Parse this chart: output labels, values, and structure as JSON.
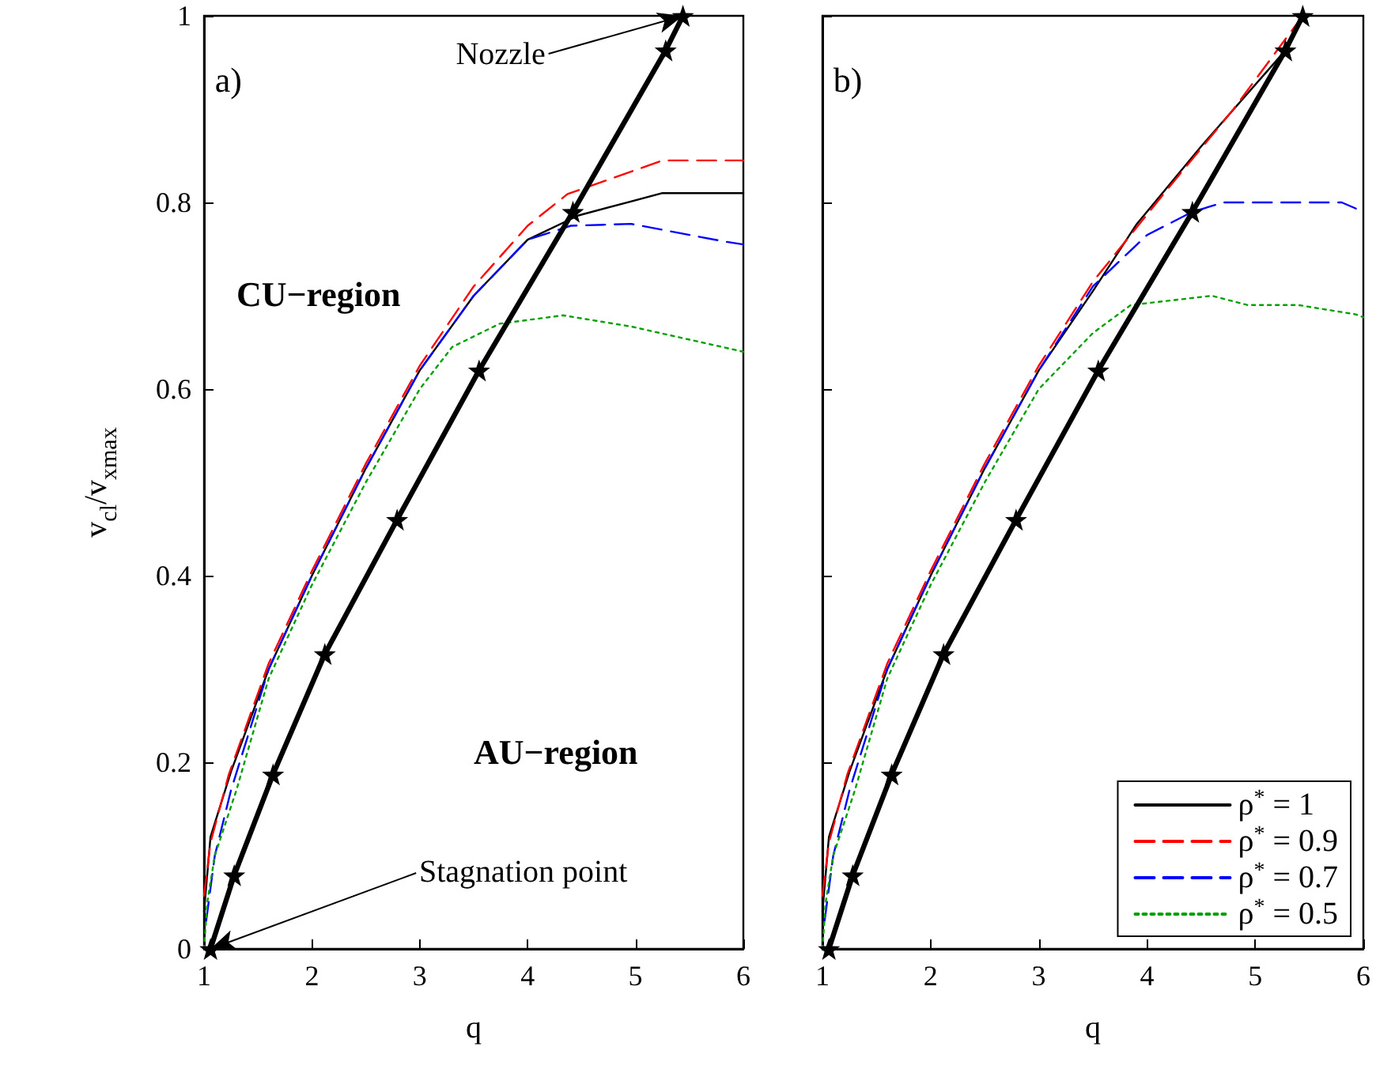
{
  "chart_data": [
    {
      "type": "line",
      "xlabel": "q",
      "ylabel": "v$_{cl}$/v$_{xmax}$",
      "xlim": [
        1,
        6
      ],
      "ylim": [
        0,
        1
      ],
      "xticks": [
        1,
        2,
        3,
        4,
        5,
        6
      ],
      "yticks": [
        0,
        0.2,
        0.4,
        0.6,
        0.8,
        1
      ],
      "grid": false,
      "legend": false,
      "series": [
        {
          "color": "#000000",
          "line_style": "solid",
          "marker": "none",
          "x": [
            1.0,
            1.06,
            1.25,
            1.6,
            2.0,
            2.5,
            3.0,
            3.5,
            4.0,
            4.47,
            5.25,
            6.0
          ],
          "values": [
            0.04,
            0.12,
            0.19,
            0.3,
            0.4,
            0.515,
            0.62,
            0.7,
            0.76,
            0.786,
            0.81,
            0.81
          ]
        },
        {
          "color": "#ff0000",
          "line_style": "dashed",
          "marker": "none",
          "x": [
            1.0,
            1.06,
            1.23,
            1.6,
            2.0,
            2.5,
            3.0,
            3.5,
            4.0,
            4.37,
            5.25,
            6.0
          ],
          "values": [
            0.057,
            0.114,
            0.187,
            0.306,
            0.405,
            0.52,
            0.625,
            0.71,
            0.775,
            0.809,
            0.845,
            0.845
          ]
        },
        {
          "color": "#0000ff",
          "line_style": "dashed",
          "marker": "none",
          "x": [
            1.02,
            1.1,
            1.25,
            1.6,
            2.0,
            2.5,
            3.0,
            3.5,
            4.0,
            4.4,
            4.96,
            5.83,
            6.0
          ],
          "values": [
            0.03,
            0.1,
            0.17,
            0.3,
            0.4,
            0.515,
            0.62,
            0.7,
            0.76,
            0.775,
            0.777,
            0.758,
            0.755
          ]
        },
        {
          "color": "#00a000",
          "line_style": "dotted",
          "marker": "none",
          "x": [
            1.0,
            1.03,
            1.1,
            1.3,
            1.6,
            2.0,
            2.5,
            3.0,
            3.3,
            3.74,
            4.33,
            4.96,
            6.0
          ],
          "values": [
            0,
            0.05,
            0.1,
            0.17,
            0.29,
            0.39,
            0.5,
            0.6,
            0.645,
            0.67,
            0.679,
            0.667,
            0.64
          ]
        },
        {
          "color": "#000000",
          "line_style": "solid",
          "marker": "star",
          "x": [
            1.06,
            1.28,
            1.64,
            2.12,
            2.79,
            3.55,
            4.42,
            5.28,
            5.44
          ],
          "values": [
            0,
            0.079,
            0.187,
            0.316,
            0.46,
            0.62,
            0.79,
            0.963,
            1.0
          ]
        }
      ],
      "annotations": [
        "a)",
        "CU−region",
        "AU−region",
        {
          "text": "Nozzle",
          "x": 5.44,
          "y": 1.0
        },
        {
          "text": "Stagnation point",
          "x": 1.06,
          "y": 0
        }
      ]
    },
    {
      "type": "line",
      "xlabel": "q",
      "xlim": [
        1,
        6
      ],
      "ylim": [
        0,
        1
      ],
      "xticks": [
        1,
        2,
        3,
        4,
        5,
        6
      ],
      "yticks": [
        0,
        0.2,
        0.4,
        0.6,
        0.8,
        1
      ],
      "grid": false,
      "legend": "bottom right",
      "tick_labels": "x",
      "series": [
        {
          "name": "ρ$^{*}$ = 1",
          "color": "#000000",
          "line_style": "solid",
          "marker": "none",
          "x": [
            1.0,
            1.06,
            1.25,
            1.6,
            2.0,
            2.5,
            3.0,
            3.5,
            3.9,
            4.5,
            5.28,
            5.44
          ],
          "values": [
            0.04,
            0.12,
            0.19,
            0.3,
            0.4,
            0.515,
            0.62,
            0.705,
            0.776,
            0.86,
            0.963,
            1.0
          ]
        },
        {
          "name": "ρ$^{*}$ = 0.9",
          "color": "#ff0000",
          "line_style": "dashed",
          "marker": "none",
          "x": [
            1.0,
            1.06,
            1.23,
            1.6,
            2.0,
            2.5,
            3.0,
            3.5,
            4.23,
            4.8,
            5.44
          ],
          "values": [
            0.057,
            0.114,
            0.187,
            0.306,
            0.405,
            0.52,
            0.625,
            0.715,
            0.82,
            0.9,
            1.0
          ]
        },
        {
          "name": "ρ$^{*}$ = 0.7",
          "color": "#0000ff",
          "line_style": "dashed",
          "marker": "none",
          "x": [
            1.02,
            1.1,
            1.25,
            1.6,
            2.0,
            2.5,
            3.0,
            3.5,
            4.0,
            4.42,
            4.71,
            5.8,
            6.0
          ],
          "values": [
            0.03,
            0.1,
            0.17,
            0.3,
            0.4,
            0.515,
            0.62,
            0.71,
            0.765,
            0.79,
            0.8,
            0.8,
            0.79
          ]
        },
        {
          "name": "ρ$^{*}$ = 0.5",
          "color": "#00a000",
          "line_style": "dotted",
          "marker": "none",
          "x": [
            1.0,
            1.03,
            1.1,
            1.3,
            1.6,
            2.0,
            2.5,
            3.0,
            3.5,
            3.85,
            4.6,
            4.93,
            5.4,
            5.93,
            6.0
          ],
          "values": [
            0,
            0.05,
            0.1,
            0.17,
            0.29,
            0.39,
            0.5,
            0.6,
            0.66,
            0.69,
            0.7,
            0.69,
            0.69,
            0.68,
            0.677
          ]
        },
        {
          "color": "#000000",
          "line_style": "solid",
          "marker": "star",
          "x": [
            1.06,
            1.28,
            1.64,
            2.12,
            2.79,
            3.55,
            4.42,
            5.28,
            5.44
          ],
          "values": [
            0,
            0.079,
            0.187,
            0.316,
            0.46,
            0.62,
            0.79,
            0.963,
            1.0
          ]
        }
      ],
      "annotations": [
        "b)"
      ]
    }
  ]
}
